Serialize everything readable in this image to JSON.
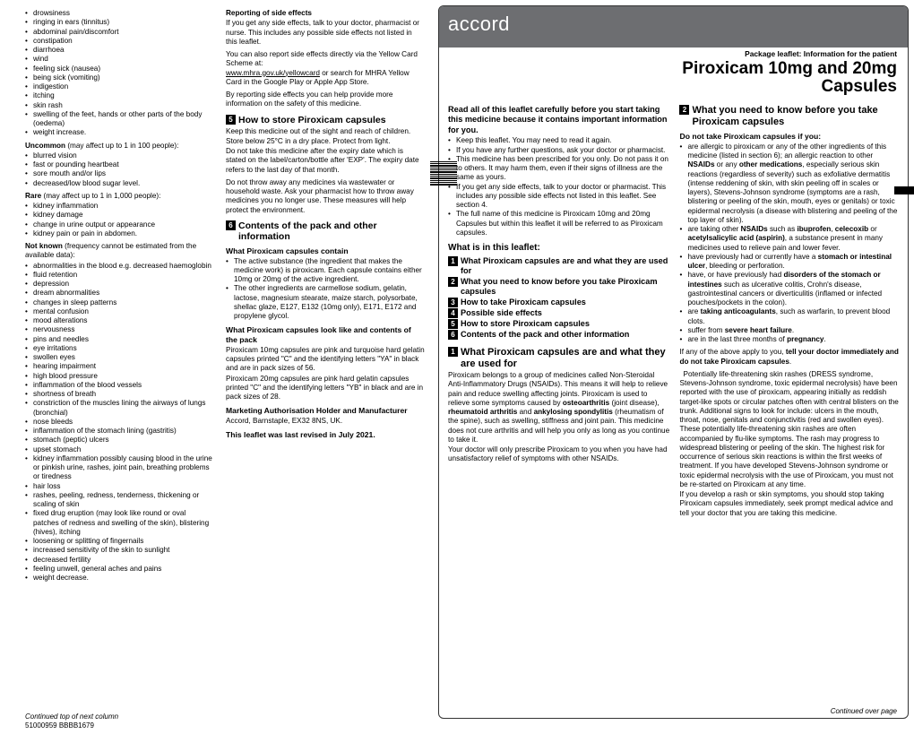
{
  "left": {
    "col1": {
      "sideEffectsCommon": [
        "drowsiness",
        "ringing in ears (tinnitus)",
        "abdominal pain/discomfort",
        "constipation",
        "diarrhoea",
        "wind",
        "feeling sick (nausea)",
        "being sick (vomiting)",
        "indigestion",
        "itching",
        "skin rash",
        "swelling of the feet, hands or other parts of the body (oedema)",
        "weight increase."
      ],
      "uncommonIntro": "Uncommon (may affect up to 1 in 100 people):",
      "uncommon": [
        "blurred vision",
        "fast or pounding heartbeat",
        "sore mouth and/or lips",
        "decreased/low blood sugar level."
      ],
      "rareIntro": "Rare (may affect up to 1 in 1,000 people):",
      "rare": [
        "kidney inflammation",
        "kidney damage",
        "change in urine output or appearance",
        "kidney pain or pain in abdomen."
      ],
      "notKnownIntro": "Not known (frequency cannot be estimated from the available data):",
      "notKnown": [
        "abnormalities in the blood e.g. decreased haemoglobin",
        "fluid retention",
        "depression",
        "dream abnormalities",
        "changes in sleep patterns",
        "mental confusion",
        "mood alterations",
        "nervousness",
        "pins and needles",
        "eye irritations",
        "swollen eyes",
        "hearing impairment",
        "high blood pressure",
        "inflammation of the blood vessels",
        "shortness of breath",
        "constriction of the muscles lining the airways of lungs (bronchial)",
        "nose bleeds",
        "inflammation of the stomach lining (gastritis)",
        "stomach (peptic) ulcers",
        "upset stomach",
        "kidney inflammation possibly causing blood in the urine or pinkish urine, rashes, joint pain, breathing problems or tiredness",
        "hair loss",
        "rashes, peeling, redness, tenderness, thickening or scaling of skin",
        "fixed drug eruption (may look like round or oval patches of redness and swelling of the skin), blistering (hives), itching",
        "loosening or splitting of fingernails",
        "increased sensitivity of the skin to sunlight",
        "decreased fertility",
        "feeling unwell, general aches and pains",
        "weight decrease."
      ]
    },
    "col2": {
      "reportTitle": "Reporting of side effects",
      "reportP1": "If you get any side effects, talk to your doctor, pharmacist or nurse. This includes any possible side effects not listed in this leaflet.",
      "reportP2a": "You can also report side effects directly via the Yellow Card Scheme at:",
      "reportLink": "www.mhra.gov.uk/yellowcard",
      "reportP2b": " or search for MHRA Yellow Card in the Google Play or Apple App Store.",
      "reportP3": "By reporting side effects you can help provide more information on the safety of this medicine.",
      "sec5Title": "How to store Piroxicam capsules",
      "sec5p1": "Keep this medicine out of the sight and reach of children.",
      "sec5p2": "Store below 25°C in a dry place. Protect from light.",
      "sec5p3": "Do not take this medicine after the expiry date which is stated on the label/carton/bottle after 'EXP'. The expiry date refers to the last day of that month.",
      "sec5p4": "Do not throw away any medicines via wastewater or household waste. Ask your pharmacist how to throw away medicines you no longer use. These measures will help protect the environment.",
      "sec6Title": "Contents of the pack and other information",
      "containTitle": "What Piroxicam capsules contain",
      "containItems": [
        "The active substance (the ingredient that makes the medicine work) is piroxicam. Each capsule contains either 10mg or 20mg of the active ingredient.",
        "The other ingredients are carmellose sodium, gelatin, lactose, magnesium stearate, maize starch, polysorbate, shellac glaze, E127, E132 (10mg only), E171, E172 and propylene glycol."
      ],
      "lookTitle": "What Piroxicam capsules look like and contents of the pack",
      "lookP1": "Piroxicam 10mg capsules are pink and turquoise hard gelatin capsules printed \"C\" and the identifying letters \"YA\" in black and are in pack sizes of 56.",
      "lookP2": "Piroxicam 20mg capsules are pink hard gelatin capsules printed \"C\" and the identifying letters \"YB\" in black and are in pack sizes of 28.",
      "mahTitle": "Marketing Authorisation Holder and Manufacturer",
      "mahP": "Accord, Barnstaple, EX32 8NS, UK.",
      "revTitle": "This leaflet was last revised in July 2021."
    },
    "footerContinued": "Continued top of next column",
    "footerCode": "51000959  BBBB1679"
  },
  "right": {
    "logo": "accord",
    "pkgLine": "Package leaflet: Information for the patient",
    "title1": "Piroxicam 10mg and 20mg",
    "title2": "Capsules",
    "col1": {
      "readIntro": "Read all of this leaflet carefully before you start taking this medicine because it contains important information for you.",
      "readBullets": [
        "Keep this leaflet. You may need to read it again.",
        "If you have any further questions, ask your doctor or pharmacist.",
        "This medicine has been prescribed for you only. Do not pass it on to others. It may harm them, even if their signs of illness are the same as yours.",
        "If you get any side effects, talk to your doctor or pharmacist. This includes any possible side effects not listed in this leaflet. See section 4.",
        "The full name of this medicine is Piroxicam 10mg and 20mg Capsules but within this leaflet it will be referred to as Piroxicam capsules."
      ],
      "tocTitle": "What is in this leaflet:",
      "toc": [
        "What Piroxicam capsules are and what they are used for",
        "What you need to know before you take Piroxicam capsules",
        "How to take Piroxicam capsules",
        "Possible side effects",
        "How to store Piroxicam capsules",
        "Contents of the pack and other information"
      ],
      "sec1Title": "What Piroxicam capsules are and what they are used for",
      "sec1Body": "Piroxicam belongs to a group of medicines called Non-Steroidal Anti-Inflammatory Drugs (NSAIDs). This means it will help to relieve pain and reduce swelling affecting joints. Piroxicam is used to relieve some symptoms caused by osteoarthritis (joint disease), rheumatoid arthritis and ankylosing spondylitis (rheumatism of the spine), such as swelling, stiffness and joint pain. This medicine does not cure arthritis and will help you only as long as you continue to take it.",
      "sec1Body2": "Your doctor will only prescribe Piroxicam to you when you have had unsatisfactory relief of symptoms with other NSAIDs."
    },
    "col2": {
      "sec2Title": "What you need to know before you take Piroxicam capsules",
      "doNotTitle": "Do not take Piroxicam capsules if you:",
      "doNot": [
        "are allergic to piroxicam or any of the other ingredients of this medicine (listed in section 6); an allergic reaction to other NSAIDs or any other medications, especially serious skin reactions (regardless of severity) such as exfoliative dermatitis (intense reddening of skin, with skin peeling off in scales or layers), Stevens-Johnson syndrome (symptoms are a rash, blistering or peeling of the skin, mouth, eyes or genitals) or toxic epidermal necrolysis (a disease with blistering and peeling of the top layer of skin).",
        "are taking other NSAIDs such as ibuprofen, celecoxib or acetylsalicylic acid (aspirin), a substance present in many medicines used to relieve pain and lower fever.",
        "have previously had or currently have a stomach or intestinal ulcer, bleeding or perforation.",
        "have, or have previously had disorders of the stomach or intestines such as ulcerative colitis, Crohn's disease, gastrointestinal cancers or diverticulitis (inflamed or infected pouches/pockets in the colon).",
        "are taking anticoagulants, such as warfarin, to prevent blood clots.",
        "suffer from severe heart failure.",
        "are in the last three months of pregnancy."
      ],
      "tellDoc": "If any of the above apply to you, tell your doctor immediately and do not take Piroxicam capsules.",
      "rashP": "Potentially life-threatening skin rashes (DRESS syndrome, Stevens-Johnson syndrome, toxic epidermal necrolysis) have been reported with the use of piroxicam, appearing initially as reddish target-like spots or circular patches often with central blisters on the trunk. Additional signs to look for include: ulcers in the mouth, throat, nose, genitals and conjunctivitis (red and swollen eyes). These potentially life-threatening skin rashes are often accompanied by flu-like symptoms. The rash may progress to widespread blistering or peeling of the skin. The highest risk for occurrence of serious skin reactions is within the first weeks of treatment. If you have developed Stevens-Johnson syndrome or toxic epidermal necrolysis with the use of Piroxicam, you must not be re-started on Piroxicam at any time.",
      "rashP2": "If you develop a rash or skin symptoms, you should stop taking Piroxicam capsules immediately, seek prompt medical advice and tell your doctor that you are taking this medicine."
    },
    "footerCont": "Continued over page"
  }
}
